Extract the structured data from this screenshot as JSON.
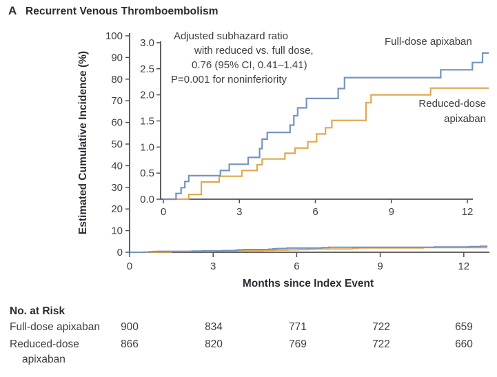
{
  "title": {
    "panel": "A",
    "text": "Recurrent Venous Thromboembolism"
  },
  "colors": {
    "full_dose": "#7593be",
    "reduced_dose": "#e0a850",
    "axis": "#4f4f52",
    "text": "#3d3d40"
  },
  "main_axes": {
    "ylabel": "Estimated Cumulative Incidence (%)",
    "xlabel": "Months since Index Event",
    "y_ticks": [
      0,
      10,
      20,
      30,
      40,
      50,
      60,
      70,
      80,
      90,
      100
    ],
    "x_ticks": [
      0,
      3,
      6,
      9,
      12
    ],
    "ylim": [
      0,
      100
    ],
    "xlim": [
      0,
      12.85
    ]
  },
  "inset_axes": {
    "y_ticks": [
      "0.0",
      "0.5",
      "1.0",
      "1.5",
      "2.0",
      "2.5",
      "3.0"
    ],
    "x_ticks": [
      0,
      3,
      6,
      9,
      12
    ],
    "ylim": [
      0,
      3.0
    ],
    "xlim": [
      0,
      12.85
    ]
  },
  "annotation": {
    "lines": [
      "Adjusted subhazard ratio",
      "with reduced vs. full dose,",
      "0.76 (95% CI, 0.41–1.41)",
      "P=0.001 for noninferiority"
    ]
  },
  "series_labels": {
    "full": "Full-dose apixaban",
    "reduced_line1": "Reduced-dose",
    "reduced_line2": "apixaban"
  },
  "chart_data": {
    "type": "line",
    "subtype": "step-cumulative-incidence",
    "title": "Recurrent Venous Thromboembolism",
    "xlabel": "Months since Index Event",
    "ylabel": "Estimated Cumulative Incidence (%)",
    "main_ylim": [
      0,
      100
    ],
    "inset_ylim": [
      0,
      3.0
    ],
    "xlim": [
      0,
      12.85
    ],
    "x_ticks": [
      0,
      3,
      6,
      9,
      12
    ],
    "grid": false,
    "end_month": 12.85,
    "series": [
      {
        "name": "Full-dose apixaban",
        "color": "#7593be",
        "steps": [
          [
            0,
            0
          ],
          [
            0.5,
            0.11
          ],
          [
            0.7,
            0.22
          ],
          [
            0.85,
            0.34
          ],
          [
            1.0,
            0.45
          ],
          [
            2.25,
            0.55
          ],
          [
            2.6,
            0.67
          ],
          [
            3.35,
            0.8
          ],
          [
            3.8,
            0.97
          ],
          [
            3.9,
            1.15
          ],
          [
            4.1,
            1.28
          ],
          [
            5.0,
            1.42
          ],
          [
            5.15,
            1.6
          ],
          [
            5.3,
            1.75
          ],
          [
            5.65,
            1.93
          ],
          [
            6.9,
            2.12
          ],
          [
            7.15,
            2.33
          ],
          [
            10.95,
            2.48
          ],
          [
            12.2,
            2.62
          ],
          [
            12.6,
            2.8
          ]
        ]
      },
      {
        "name": "Reduced-dose apixaban",
        "color": "#e0a850",
        "steps": [
          [
            0,
            0
          ],
          [
            1.0,
            0.09
          ],
          [
            1.5,
            0.33
          ],
          [
            2.2,
            0.44
          ],
          [
            3.1,
            0.55
          ],
          [
            3.7,
            0.66
          ],
          [
            3.9,
            0.77
          ],
          [
            4.8,
            0.88
          ],
          [
            5.2,
            0.98
          ],
          [
            5.7,
            1.1
          ],
          [
            6.05,
            1.25
          ],
          [
            6.4,
            1.37
          ],
          [
            6.65,
            1.51
          ],
          [
            8.0,
            1.85
          ],
          [
            8.2,
            2.0
          ],
          [
            10.55,
            2.13
          ]
        ]
      }
    ],
    "annotation": "Adjusted subhazard ratio with reduced vs. full dose, 0.76 (95% CI, 0.41–1.41) P=0.001 for noninferiority"
  },
  "risk_table": {
    "header": "No. at Risk",
    "timepoints_months": [
      0,
      3,
      6,
      9,
      12
    ],
    "rows": [
      {
        "label": "Full-dose apixaban",
        "label2": "",
        "values": [
          900,
          834,
          771,
          722,
          659
        ]
      },
      {
        "label": "Reduced-dose",
        "label2": "apixaban",
        "values": [
          866,
          820,
          769,
          722,
          660
        ]
      }
    ]
  }
}
